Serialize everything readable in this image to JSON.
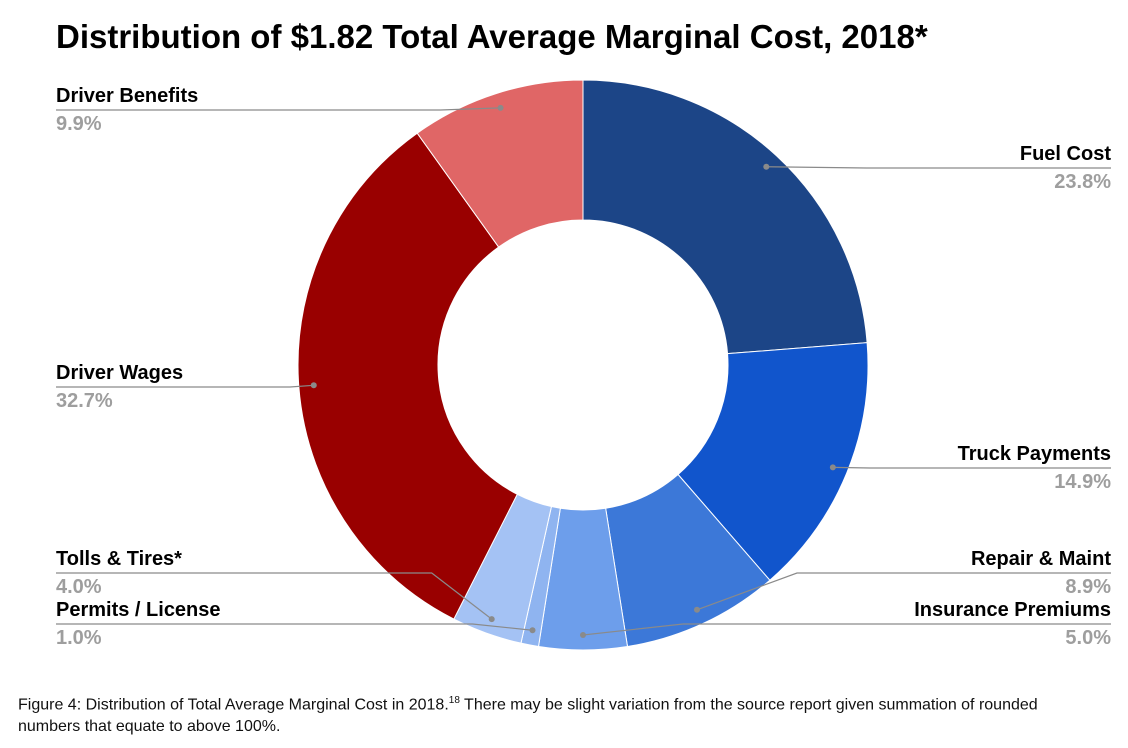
{
  "chart_data": {
    "type": "pie",
    "donut": true,
    "title": "Distribution of $1.82 Total Average Marginal Cost, 2018*",
    "slices": [
      {
        "name": "Fuel Cost",
        "value": 23.8,
        "label": "23.8%",
        "color": "#1c4587"
      },
      {
        "name": "Truck Payments",
        "value": 14.9,
        "label": "14.9%",
        "color": "#1155cc"
      },
      {
        "name": "Repair & Maint",
        "value": 8.9,
        "label": "8.9%",
        "color": "#3c78d8"
      },
      {
        "name": "Insurance Premiums",
        "value": 5.0,
        "label": "5.0%",
        "color": "#6d9eeb"
      },
      {
        "name": "Permits / License",
        "value": 1.0,
        "label": "1.0%",
        "color": "#8fb4f0"
      },
      {
        "name": "Tolls & Tires*",
        "value": 4.0,
        "label": "4.0%",
        "color": "#a4c2f4"
      },
      {
        "name": "Driver Wages",
        "value": 32.7,
        "label": "32.7%",
        "color": "#990000"
      },
      {
        "name": "Driver Benefits",
        "value": 9.9,
        "label": "9.9%",
        "color": "#e06666"
      }
    ],
    "legend": "none"
  },
  "caption": {
    "text": "Figure 4: Distribution of Total Average Marginal Cost in 2018.",
    "footnote": "18",
    "rest": " There may be slight variation from the source report given summation of rounded numbers that equate to above 100%."
  }
}
